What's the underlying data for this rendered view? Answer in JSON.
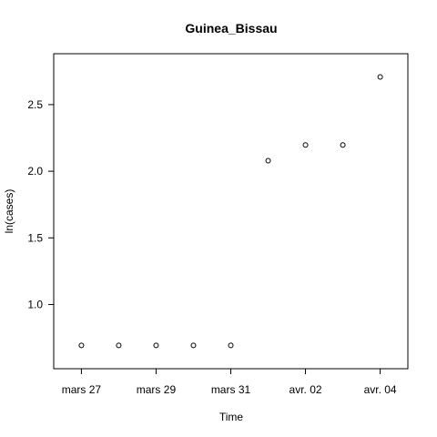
{
  "chart_data": {
    "type": "scatter",
    "title": "Guinea_Bissau",
    "xlabel": "Time",
    "ylabel": "ln(cases)",
    "x": [
      "2020-03-27",
      "2020-03-28",
      "2020-03-29",
      "2020-03-30",
      "2020-03-31",
      "2020-04-01",
      "2020-04-02",
      "2020-04-03",
      "2020-04-04"
    ],
    "y": [
      0.693,
      0.693,
      0.693,
      0.693,
      0.693,
      2.079,
      2.197,
      2.197,
      2.708
    ],
    "xlim": [
      "2020-03-26",
      "2020-04-05"
    ],
    "ylim": [
      0.6,
      2.8
    ],
    "x_ticks": [
      {
        "date": "2020-03-27",
        "label": "mars 27"
      },
      {
        "date": "2020-03-29",
        "label": "mars 29"
      },
      {
        "date": "2020-03-31",
        "label": "mars 31"
      },
      {
        "date": "2020-04-02",
        "label": "avr. 02"
      },
      {
        "date": "2020-04-04",
        "label": "avr. 04"
      }
    ],
    "y_ticks": [
      1.0,
      1.5,
      2.0,
      2.5
    ],
    "y_tick_labels": [
      "1.0",
      "1.5",
      "2.0",
      "2.5"
    ],
    "grid": false,
    "legend": "none",
    "point_style": "open-circle",
    "colors": {
      "points": "#000000",
      "frame": "#000000",
      "background": "#ffffff"
    }
  }
}
